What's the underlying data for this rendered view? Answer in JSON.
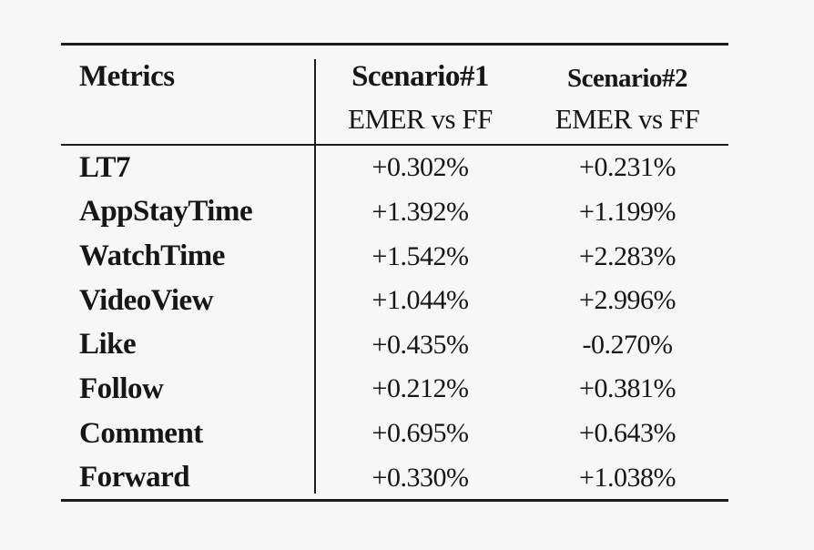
{
  "colors": {
    "background": "#f7f7f7",
    "text": "#161616",
    "rule": "#1c1c1c"
  },
  "table": {
    "header": {
      "metrics_label": "Metrics",
      "scenario1_title": "Scenario#1",
      "scenario1_subtitle": "EMER vs FF",
      "scenario2_title": "Scenario#2",
      "scenario2_subtitle": "EMER vs FF"
    },
    "rows": [
      {
        "metric": "LT7",
        "scenario1": "+0.302%",
        "scenario2": "+0.231%"
      },
      {
        "metric": "AppStayTime",
        "scenario1": "+1.392%",
        "scenario2": "+1.199%"
      },
      {
        "metric": "WatchTime",
        "scenario1": "+1.542%",
        "scenario2": "+2.283%"
      },
      {
        "metric": "VideoView",
        "scenario1": "+1.044%",
        "scenario2": "+2.996%"
      },
      {
        "metric": "Like",
        "scenario1": "+0.435%",
        "scenario2": "-0.270%"
      },
      {
        "metric": "Follow",
        "scenario1": "+0.212%",
        "scenario2": "+0.381%"
      },
      {
        "metric": "Comment",
        "scenario1": "+0.695%",
        "scenario2": "+0.643%"
      },
      {
        "metric": "Forward",
        "scenario1": "+0.330%",
        "scenario2": "+1.038%"
      }
    ]
  },
  "chart_data": {
    "type": "table",
    "title": "",
    "columns": [
      "Metrics",
      "Scenario#1 EMER vs FF",
      "Scenario#2 EMER vs FF"
    ],
    "categories": [
      "LT7",
      "AppStayTime",
      "WatchTime",
      "VideoView",
      "Like",
      "Follow",
      "Comment",
      "Forward"
    ],
    "series": [
      {
        "name": "Scenario#1 EMER vs FF (%)",
        "values": [
          0.302,
          1.392,
          1.542,
          1.044,
          0.435,
          0.212,
          0.695,
          0.33
        ]
      },
      {
        "name": "Scenario#2 EMER vs FF (%)",
        "values": [
          0.231,
          1.199,
          2.283,
          2.996,
          -0.27,
          0.381,
          0.643,
          1.038
        ]
      }
    ]
  }
}
